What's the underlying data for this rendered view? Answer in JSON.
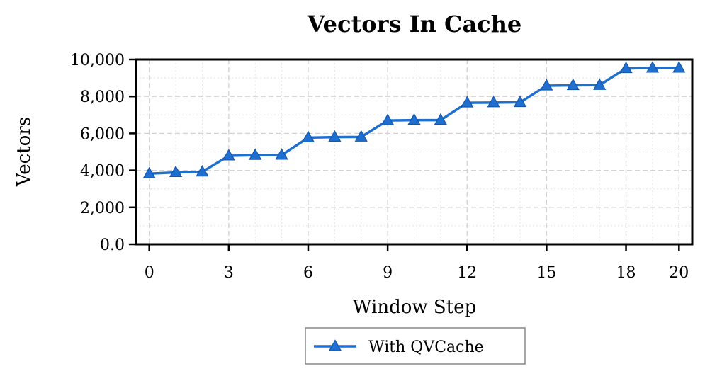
{
  "chart_data": {
    "type": "line",
    "title": "Vectors In Cache",
    "xlabel": "Window Step",
    "ylabel": "Vectors",
    "xlim": [
      -0.5,
      20.5
    ],
    "ylim": [
      0,
      10000
    ],
    "x_ticks": [
      0,
      3,
      6,
      9,
      12,
      15,
      18,
      20
    ],
    "x_tick_labels": [
      "0",
      "3",
      "6",
      "9",
      "12",
      "15",
      "18",
      "20"
    ],
    "y_ticks": [
      0,
      2000,
      4000,
      6000,
      8000,
      10000
    ],
    "y_tick_labels": [
      "0.0",
      "2,000",
      "4,000",
      "6,000",
      "8,000",
      "10,000"
    ],
    "grid": true,
    "legend_position": "bottom-center",
    "x": [
      0,
      1,
      2,
      3,
      4,
      5,
      6,
      7,
      8,
      9,
      10,
      11,
      12,
      13,
      14,
      15,
      16,
      17,
      18,
      19,
      20
    ],
    "series": [
      {
        "name": "With QVCache",
        "color": "#1f6fd1",
        "marker": "triangle",
        "values": [
          3820,
          3890,
          3920,
          4790,
          4820,
          4830,
          5770,
          5800,
          5810,
          6700,
          6720,
          6720,
          7660,
          7670,
          7680,
          8580,
          8600,
          8610,
          9520,
          9540,
          9540
        ]
      }
    ]
  }
}
